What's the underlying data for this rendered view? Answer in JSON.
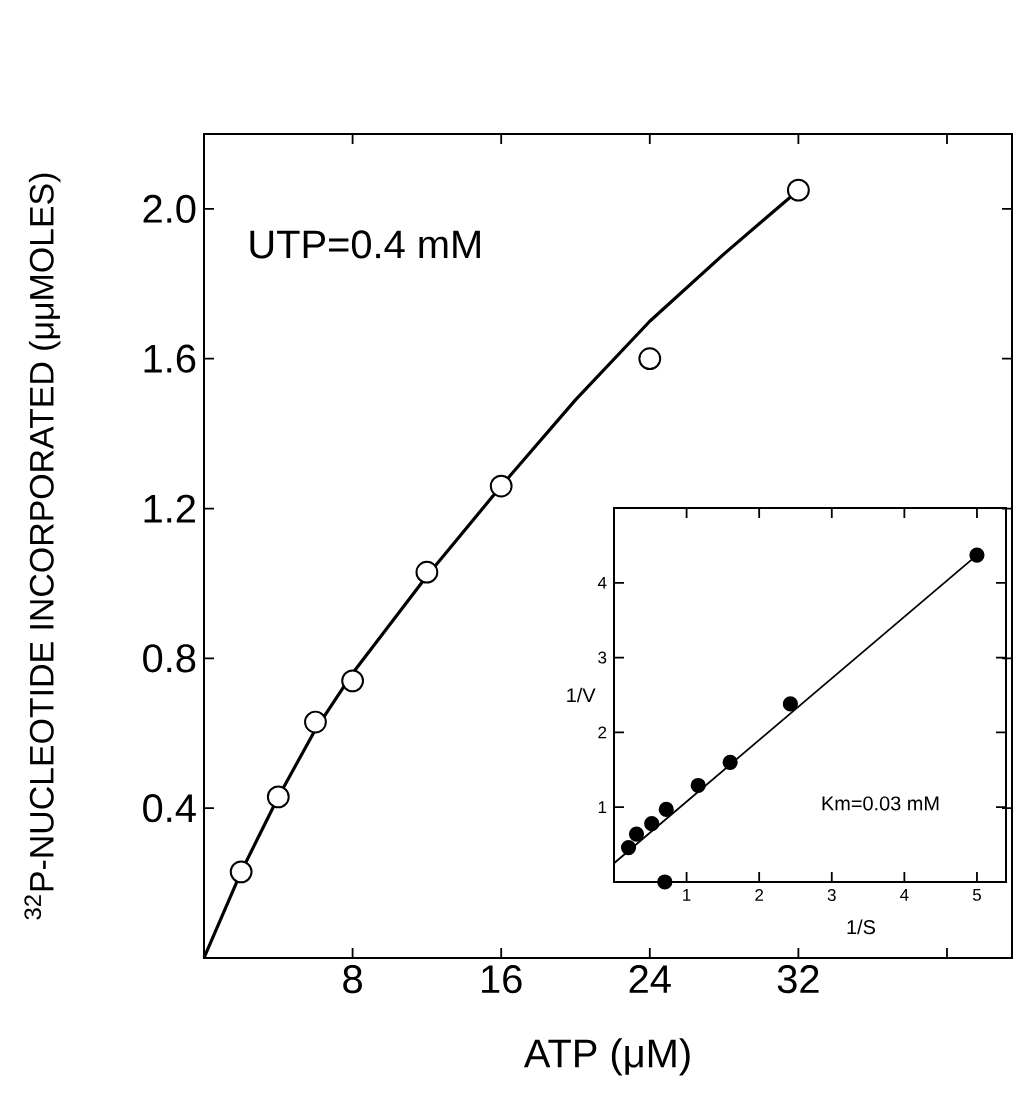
{
  "chart_data": [
    {
      "type": "scatter",
      "xlabel": "ATP (μM)",
      "ylabel": "$^{32}$P-NUCLEOTIDE INCORPORATED (μμMOLES)",
      "annotations": [
        "UTP=0.4 mM"
      ],
      "xlim": [
        0,
        43.5
      ],
      "ylim": [
        0,
        2.2
      ],
      "xticks": [
        8,
        16,
        24,
        32,
        {
          "value": 40,
          "label": null
        }
      ],
      "yticks": [
        0.4,
        0.8,
        1.2,
        1.6,
        {
          "value": 2.0,
          "label": "2.0"
        }
      ],
      "series": [
        {
          "marker": "circle",
          "color": "#000000",
          "x": [
            2,
            4,
            6,
            8,
            12,
            16,
            24,
            32
          ],
          "values": [
            0.23,
            0.43,
            0.63,
            0.74,
            1.03,
            1.26,
            1.6,
            2.05
          ]
        },
        {
          "type": "line",
          "marker": "none",
          "color": "#000000",
          "x": [
            0,
            2,
            4,
            6,
            8,
            12,
            16,
            20,
            24,
            28,
            32
          ],
          "values": [
            0,
            0.23,
            0.43,
            0.61,
            0.76,
            1.02,
            1.26,
            1.49,
            1.7,
            1.88,
            2.05
          ]
        }
      ]
    },
    {
      "type": "scatter",
      "xlabel": "1/S",
      "ylabel": "1/V",
      "annotations": [
        "Km=0.03 mM"
      ],
      "xlim": [
        0,
        5.4
      ],
      "ylim": [
        0,
        5
      ],
      "xticks": [
        1,
        2,
        3,
        4,
        5
      ],
      "yticks": [
        1,
        2,
        3,
        4
      ],
      "series": [
        {
          "marker": "circle",
          "color": "#000000",
          "x": [
            0.2,
            0.31,
            0.52,
            0.72,
            1.16,
            1.6,
            2.43,
            5.0
          ],
          "values": [
            0.46,
            0.64,
            0.78,
            0.97,
            1.29,
            1.6,
            2.38,
            4.37
          ]
        },
        {
          "type": "line",
          "marker": "none",
          "color": "#000000",
          "x": [
            0,
            5.0
          ],
          "values": [
            0.25,
            4.37
          ]
        },
        {
          "marker": "circle",
          "color": "#000000",
          "x": [
            0.7
          ],
          "values": [
            0
          ]
        }
      ]
    }
  ]
}
